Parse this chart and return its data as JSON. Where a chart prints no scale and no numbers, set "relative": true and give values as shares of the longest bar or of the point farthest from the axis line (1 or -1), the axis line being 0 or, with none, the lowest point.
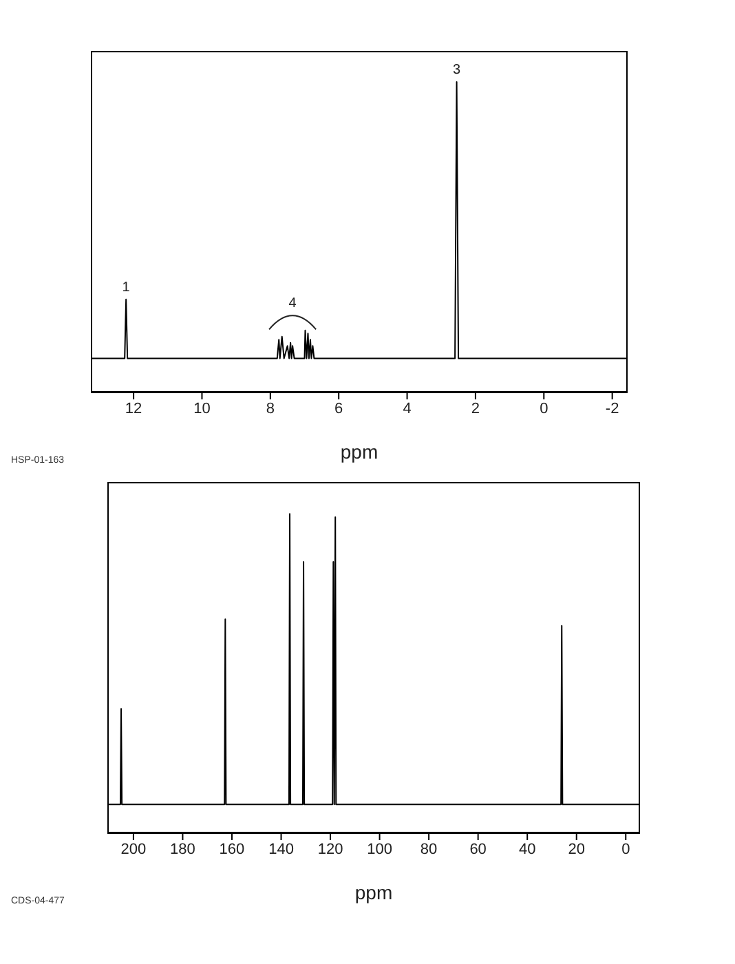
{
  "chart_data": [
    {
      "type": "line",
      "relative": true,
      "xlabel": "ppm",
      "xlim": [
        13.25,
        -2.45
      ],
      "xticks": [
        12,
        10,
        8,
        6,
        4,
        2,
        0,
        -2
      ],
      "marker": "none",
      "line_style": "solid",
      "series": [
        {
          "color": "#000000",
          "x": [
            13.25,
            12.26,
            12.22,
            12.18,
            7.8,
            7.75,
            7.72,
            7.66,
            7.6,
            7.5,
            7.45,
            7.41,
            7.38,
            7.35,
            7.3,
            7.0,
            6.98,
            6.94,
            6.9,
            6.87,
            6.83,
            6.8,
            6.76,
            6.72,
            2.6,
            2.55,
            2.5,
            -2.45
          ],
          "values": [
            0.11,
            0.11,
            0.3,
            0.11,
            0.11,
            0.17,
            0.11,
            0.18,
            0.11,
            0.15,
            0.11,
            0.16,
            0.11,
            0.15,
            0.11,
            0.11,
            0.2,
            0.11,
            0.19,
            0.11,
            0.17,
            0.11,
            0.15,
            0.11,
            0.11,
            1,
            0.11,
            0.11
          ]
        }
      ],
      "annotations": [
        {
          "text": "1",
          "x": 12.22,
          "y": 0.3
        },
        {
          "text": "4",
          "x": 7.35,
          "y": 0.15
        },
        {
          "text": "3",
          "x": 2.55,
          "y": 1
        },
        "HSP-01-163"
      ]
    },
    {
      "type": "line",
      "relative": true,
      "xlabel": "ppm",
      "xlim": [
        210.6,
        -5.8
      ],
      "xticks": [
        200,
        180,
        160,
        140,
        120,
        100,
        80,
        60,
        40,
        20,
        0
      ],
      "marker": "none",
      "line_style": "solid",
      "series": [
        {
          "color": "#000000",
          "x": [
            210.6,
            205.3,
            205.0,
            204.7,
            163,
            162.7,
            162.4,
            136.8,
            136.5,
            136.2,
            131.2,
            130.9,
            130.6,
            119.1,
            118.8,
            118.4,
            118.0,
            117.7,
            26.3,
            26.0,
            25.7,
            -5.8
          ],
          "values": [
            0.09,
            0.09,
            0.39,
            0.09,
            0.09,
            0.67,
            0.09,
            0.09,
            1,
            0.09,
            0.09,
            0.85,
            0.09,
            0.09,
            0.85,
            0.09,
            0.99,
            0.09,
            0.09,
            0.65,
            0.09,
            0.09
          ]
        }
      ],
      "annotations": [
        "CDS-04-477"
      ]
    }
  ]
}
